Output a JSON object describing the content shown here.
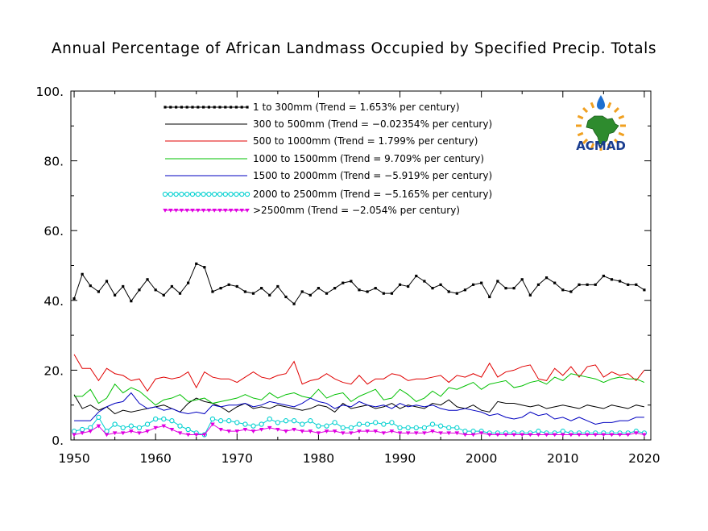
{
  "chart_data": {
    "type": "line",
    "title": "Annual Percentage of African Landmass Occupied by Specified Precip. Totals",
    "xlabel": "",
    "ylabel": "",
    "xlim": [
      1949.6,
      2020.8
    ],
    "ylim": [
      0,
      100
    ],
    "xticks": [
      1950,
      1960,
      1970,
      1980,
      1990,
      2000,
      2010,
      2020
    ],
    "yticks": [
      0,
      20,
      40,
      60,
      80,
      100
    ],
    "ytick_labels": [
      "0.",
      "20.",
      "40.",
      "60.",
      "80.",
      "100."
    ],
    "legend_position": "top-center",
    "grid": false,
    "logo_text": "ACMAD",
    "x_start": 1950,
    "series": [
      {
        "name": "1 to 300mm (Trend = 1.653% per century)",
        "color": "#000000",
        "marker": "square",
        "values": [
          40.5,
          47.5,
          44.2,
          42.5,
          45.5,
          41.5,
          44.0,
          39.8,
          43.0,
          46.0,
          43.0,
          41.5,
          44.0,
          42.0,
          45.0,
          50.5,
          49.5,
          42.5,
          43.5,
          44.5,
          44.0,
          42.5,
          42.0,
          43.5,
          41.5,
          44.0,
          41.0,
          39.0,
          42.5,
          41.5,
          43.5,
          42.0,
          43.5,
          45.0,
          45.5,
          43.0,
          42.5,
          43.5,
          42.0,
          42.0,
          44.5,
          44.0,
          47.0,
          45.5,
          43.5,
          44.5,
          42.5,
          42.0,
          43.0,
          44.5,
          45.0,
          41.0,
          45.5,
          43.5,
          43.5,
          46.0,
          41.5,
          44.5,
          46.5,
          45.0,
          43.0,
          42.5,
          44.5,
          44.5,
          44.5,
          47.0,
          46.0,
          45.5,
          44.5,
          44.5,
          43.0
        ]
      },
      {
        "name": "300 to 500mm (Trend = −0.02354% per century)",
        "color": "#000000",
        "marker": "none",
        "values": [
          13.0,
          9.0,
          10.0,
          8.5,
          9.5,
          7.5,
          8.5,
          8.0,
          8.5,
          9.0,
          9.5,
          10.0,
          9.0,
          8.0,
          10.5,
          12.0,
          11.0,
          10.5,
          9.5,
          8.0,
          9.5,
          10.5,
          9.0,
          9.5,
          9.0,
          10.0,
          9.5,
          9.0,
          8.5,
          9.0,
          10.0,
          9.5,
          8.0,
          10.5,
          9.0,
          9.5,
          10.0,
          9.0,
          9.5,
          10.5,
          9.0,
          10.0,
          9.5,
          9.0,
          10.5,
          10.0,
          11.5,
          9.5,
          9.0,
          10.0,
          8.5,
          8.0,
          11.0,
          10.5,
          10.5,
          10.0,
          9.5,
          10.0,
          9.0,
          9.5,
          10.0,
          9.5,
          9.0,
          10.0,
          9.5,
          9.0,
          10.0,
          9.5,
          9.0,
          10.0,
          9.5
        ]
      },
      {
        "name": "500 to 1000mm (Trend = 1.799% per century)",
        "color": "#e00000",
        "marker": "none",
        "values": [
          24.5,
          20.5,
          20.5,
          17.0,
          20.5,
          19.0,
          18.5,
          17.0,
          17.5,
          14.0,
          17.5,
          18.0,
          17.5,
          18.0,
          19.5,
          15.0,
          19.5,
          18.0,
          17.5,
          17.5,
          16.5,
          18.0,
          19.5,
          18.0,
          17.5,
          18.5,
          19.0,
          22.5,
          16.0,
          17.0,
          17.5,
          19.0,
          17.5,
          16.5,
          16.0,
          18.5,
          16.0,
          17.5,
          17.5,
          19.0,
          18.5,
          17.0,
          17.5,
          17.5,
          18.0,
          18.5,
          16.5,
          18.5,
          18.0,
          19.0,
          18.0,
          22.0,
          18.0,
          19.5,
          20.0,
          21.0,
          21.5,
          17.5,
          17.0,
          20.5,
          18.5,
          21.0,
          18.0,
          21.0,
          21.5,
          18.0,
          19.5,
          18.5,
          19.0,
          17.0,
          20.0
        ]
      },
      {
        "name": "1000 to 1500mm (Trend = 9.709% per century)",
        "color": "#00c000",
        "marker": "none",
        "values": [
          12.5,
          12.5,
          14.5,
          10.5,
          12.0,
          16.0,
          13.5,
          15.0,
          14.0,
          12.0,
          10.0,
          11.5,
          12.0,
          13.0,
          11.0,
          11.5,
          12.0,
          10.5,
          11.0,
          11.5,
          12.0,
          13.0,
          12.0,
          11.5,
          13.5,
          12.0,
          13.0,
          13.5,
          12.5,
          12.0,
          14.5,
          12.0,
          13.0,
          13.5,
          11.0,
          12.5,
          13.5,
          14.5,
          11.5,
          12.0,
          14.5,
          13.0,
          11.0,
          12.0,
          14.0,
          12.5,
          15.0,
          14.5,
          15.5,
          16.5,
          14.5,
          16.0,
          16.5,
          17.0,
          15.0,
          15.5,
          16.5,
          17.0,
          16.0,
          18.0,
          17.0,
          19.0,
          18.5,
          18.0,
          17.5,
          16.5,
          17.5,
          18.0,
          17.5,
          17.5,
          16.5
        ]
      },
      {
        "name": "1500 to 2000mm (Trend = −5.919% per century)",
        "color": "#0000c0",
        "marker": "none",
        "values": [
          5.5,
          5.5,
          5.5,
          8.0,
          9.5,
          10.5,
          11.0,
          13.5,
          10.5,
          9.0,
          9.5,
          8.5,
          9.0,
          8.0,
          7.5,
          8.0,
          7.5,
          10.0,
          9.5,
          10.0,
          10.0,
          10.5,
          9.5,
          10.0,
          11.0,
          10.5,
          10.0,
          9.5,
          10.5,
          12.0,
          11.0,
          10.5,
          9.0,
          10.0,
          9.5,
          11.0,
          10.0,
          9.5,
          10.0,
          9.0,
          10.5,
          9.5,
          10.0,
          9.5,
          10.0,
          9.0,
          8.5,
          8.5,
          9.0,
          8.5,
          8.0,
          7.0,
          7.5,
          6.5,
          6.0,
          6.5,
          8.0,
          7.0,
          7.5,
          6.0,
          6.5,
          5.5,
          6.5,
          5.5,
          4.5,
          5.0,
          5.0,
          5.5,
          5.5,
          6.5,
          6.5
        ]
      },
      {
        "name": "2000 to 2500mm (Trend = −5.165% per century)",
        "color": "#00d0d0",
        "marker": "circle",
        "values": [
          2.5,
          3.0,
          3.5,
          6.5,
          2.5,
          4.5,
          3.5,
          4.0,
          3.5,
          4.5,
          6.0,
          6.0,
          5.5,
          4.0,
          3.0,
          2.0,
          1.5,
          6.0,
          5.5,
          5.5,
          5.0,
          4.5,
          4.0,
          4.5,
          6.0,
          5.0,
          5.5,
          5.5,
          4.5,
          5.5,
          4.0,
          4.0,
          5.0,
          3.5,
          3.5,
          4.5,
          4.5,
          5.0,
          4.5,
          5.0,
          3.5,
          3.5,
          3.5,
          3.5,
          4.5,
          4.0,
          3.5,
          3.5,
          2.5,
          2.5,
          2.5,
          2.0,
          2.0,
          2.0,
          2.0,
          2.0,
          2.0,
          2.5,
          2.0,
          2.0,
          2.5,
          2.0,
          2.0,
          2.0,
          2.0,
          2.0,
          2.0,
          2.0,
          2.0,
          2.5,
          2.0
        ]
      },
      {
        "name": ">2500mm (Trend = −2.054% per century)",
        "color": "#e000e0",
        "marker": "triangle",
        "values": [
          1.5,
          2.0,
          2.5,
          4.0,
          1.5,
          2.0,
          2.0,
          2.5,
          2.0,
          2.5,
          3.5,
          4.0,
          3.0,
          2.0,
          1.5,
          1.5,
          1.5,
          4.5,
          3.0,
          2.5,
          2.5,
          3.0,
          2.5,
          3.0,
          3.5,
          3.0,
          2.5,
          3.0,
          2.5,
          2.5,
          2.0,
          2.5,
          2.5,
          2.0,
          2.0,
          2.5,
          2.5,
          2.5,
          2.0,
          2.5,
          2.0,
          2.0,
          2.0,
          2.0,
          2.5,
          2.0,
          2.0,
          2.0,
          1.5,
          1.5,
          2.0,
          1.5,
          1.5,
          1.5,
          1.5,
          1.5,
          1.5,
          1.5,
          1.5,
          1.5,
          1.5,
          1.5,
          1.5,
          1.5,
          1.5,
          1.5,
          1.5,
          1.5,
          1.5,
          2.0,
          1.5
        ]
      }
    ]
  }
}
